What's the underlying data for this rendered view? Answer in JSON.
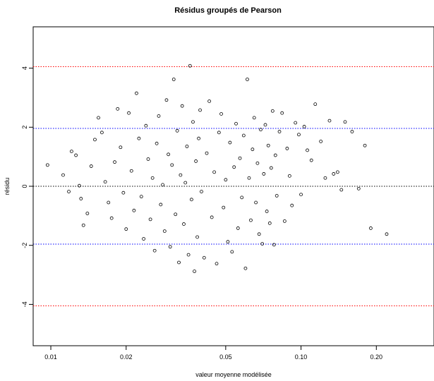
{
  "chart_data": {
    "type": "scatter",
    "title": "Résidus groupés de Pearson",
    "xlabel": "valeur moyenne modélisée",
    "ylabel": "résidu",
    "x_scale": "log",
    "xlim": [
      0.0085,
      0.34
    ],
    "ylim": [
      -5.4,
      5.4
    ],
    "x_ticks": [
      {
        "value": 0.01,
        "label": "0.01"
      },
      {
        "value": 0.02,
        "label": "0.02"
      },
      {
        "value": 0.05,
        "label": "0.05"
      },
      {
        "value": 0.1,
        "label": "0.10"
      },
      {
        "value": 0.2,
        "label": "0.20"
      }
    ],
    "y_ticks": [
      {
        "value": -4,
        "label": "-4"
      },
      {
        "value": -2,
        "label": "-2"
      },
      {
        "value": 0,
        "label": "0"
      },
      {
        "value": 2,
        "label": "2"
      },
      {
        "value": 4,
        "label": "4"
      }
    ],
    "reference_lines": [
      {
        "y": 4.05,
        "color": "#ff0000",
        "style": "dotted"
      },
      {
        "y": 1.96,
        "color": "#0000ff",
        "style": "dotted"
      },
      {
        "y": 0,
        "color": "#000000",
        "style": "dotted"
      },
      {
        "y": -1.96,
        "color": "#0000ff",
        "style": "dotted"
      },
      {
        "y": -4.05,
        "color": "#ff0000",
        "style": "dotted"
      }
    ],
    "grid": false,
    "point_color": "#000000",
    "points": [
      [
        0.0097,
        0.72
      ],
      [
        0.0112,
        0.38
      ],
      [
        0.0118,
        -0.18
      ],
      [
        0.0121,
        1.18
      ],
      [
        0.0126,
        1.05
      ],
      [
        0.013,
        0.02
      ],
      [
        0.0132,
        -0.42
      ],
      [
        0.0135,
        -1.32
      ],
      [
        0.014,
        -0.92
      ],
      [
        0.0145,
        0.68
      ],
      [
        0.015,
        1.58
      ],
      [
        0.0155,
        2.32
      ],
      [
        0.016,
        1.82
      ],
      [
        0.0165,
        0.15
      ],
      [
        0.017,
        -0.55
      ],
      [
        0.0175,
        -1.08
      ],
      [
        0.018,
        0.82
      ],
      [
        0.0185,
        2.62
      ],
      [
        0.019,
        1.32
      ],
      [
        0.0195,
        -0.22
      ],
      [
        0.02,
        -1.45
      ],
      [
        0.0205,
        2.48
      ],
      [
        0.021,
        0.52
      ],
      [
        0.0215,
        -0.82
      ],
      [
        0.022,
        3.15
      ],
      [
        0.0225,
        1.62
      ],
      [
        0.023,
        -0.35
      ],
      [
        0.0235,
        -1.78
      ],
      [
        0.024,
        2.05
      ],
      [
        0.0245,
        0.92
      ],
      [
        0.025,
        -1.12
      ],
      [
        0.0255,
        0.28
      ],
      [
        0.026,
        -2.18
      ],
      [
        0.0265,
        1.45
      ],
      [
        0.027,
        2.38
      ],
      [
        0.0275,
        -0.62
      ],
      [
        0.028,
        0.05
      ],
      [
        0.0285,
        -1.52
      ],
      [
        0.029,
        2.92
      ],
      [
        0.0295,
        1.08
      ],
      [
        0.03,
        -2.05
      ],
      [
        0.0305,
        0.72
      ],
      [
        0.031,
        3.62
      ],
      [
        0.0315,
        -0.95
      ],
      [
        0.032,
        1.88
      ],
      [
        0.0325,
        -2.58
      ],
      [
        0.033,
        0.38
      ],
      [
        0.0335,
        2.72
      ],
      [
        0.034,
        -1.28
      ],
      [
        0.0345,
        0.12
      ],
      [
        0.035,
        1.35
      ],
      [
        0.0355,
        -2.32
      ],
      [
        0.036,
        4.08
      ],
      [
        0.0365,
        -0.45
      ],
      [
        0.037,
        2.18
      ],
      [
        0.0375,
        -2.88
      ],
      [
        0.038,
        0.85
      ],
      [
        0.0385,
        -1.72
      ],
      [
        0.039,
        1.62
      ],
      [
        0.0395,
        2.58
      ],
      [
        0.04,
        -0.18
      ],
      [
        0.041,
        -2.42
      ],
      [
        0.042,
        1.12
      ],
      [
        0.043,
        2.88
      ],
      [
        0.044,
        -1.05
      ],
      [
        0.045,
        0.48
      ],
      [
        0.046,
        -2.62
      ],
      [
        0.047,
        1.82
      ],
      [
        0.048,
        2.45
      ],
      [
        0.049,
        -0.72
      ],
      [
        0.05,
        0.22
      ],
      [
        0.051,
        -1.88
      ],
      [
        0.052,
        1.48
      ],
      [
        0.053,
        -2.22
      ],
      [
        0.054,
        0.65
      ],
      [
        0.055,
        2.12
      ],
      [
        0.056,
        -1.42
      ],
      [
        0.057,
        0.95
      ],
      [
        0.058,
        -0.38
      ],
      [
        0.059,
        1.72
      ],
      [
        0.06,
        -2.78
      ],
      [
        0.061,
        3.62
      ],
      [
        0.062,
        0.28
      ],
      [
        0.063,
        -1.15
      ],
      [
        0.064,
        1.25
      ],
      [
        0.065,
        2.32
      ],
      [
        0.066,
        -0.55
      ],
      [
        0.067,
        0.78
      ],
      [
        0.068,
        -1.62
      ],
      [
        0.069,
        1.92
      ],
      [
        0.07,
        -1.95
      ],
      [
        0.071,
        0.42
      ],
      [
        0.072,
        2.08
      ],
      [
        0.073,
        -0.85
      ],
      [
        0.074,
        1.38
      ],
      [
        0.075,
        -1.25
      ],
      [
        0.076,
        0.62
      ],
      [
        0.077,
        2.55
      ],
      [
        0.078,
        -1.98
      ],
      [
        0.079,
        1.05
      ],
      [
        0.08,
        -0.32
      ],
      [
        0.082,
        1.85
      ],
      [
        0.084,
        2.48
      ],
      [
        0.086,
        -1.18
      ],
      [
        0.088,
        1.28
      ],
      [
        0.09,
        0.35
      ],
      [
        0.092,
        -0.65
      ],
      [
        0.095,
        2.15
      ],
      [
        0.098,
        1.75
      ],
      [
        0.1,
        -0.28
      ],
      [
        0.103,
        2.02
      ],
      [
        0.106,
        1.22
      ],
      [
        0.11,
        0.88
      ],
      [
        0.114,
        2.78
      ],
      [
        0.12,
        1.52
      ],
      [
        0.125,
        0.28
      ],
      [
        0.13,
        2.22
      ],
      [
        0.135,
        0.42
      ],
      [
        0.14,
        0.48
      ],
      [
        0.145,
        -0.12
      ],
      [
        0.15,
        2.18
      ],
      [
        0.16,
        1.85
      ],
      [
        0.17,
        -0.08
      ],
      [
        0.18,
        1.38
      ],
      [
        0.19,
        -1.42
      ],
      [
        0.22,
        -1.62
      ]
    ]
  }
}
